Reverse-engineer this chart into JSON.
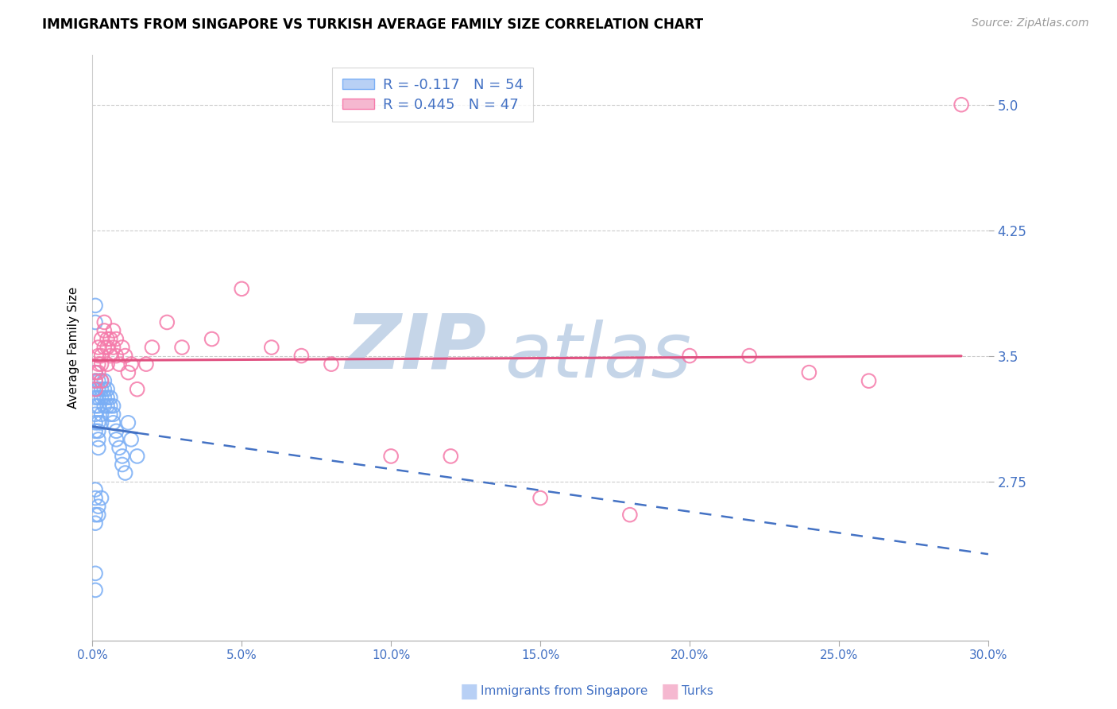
{
  "title": "IMMIGRANTS FROM SINGAPORE VS TURKISH AVERAGE FAMILY SIZE CORRELATION CHART",
  "source": "Source: ZipAtlas.com",
  "ylabel": "Average Family Size",
  "x_min": 0.0,
  "x_max": 0.3,
  "y_min": 1.8,
  "y_max": 5.3,
  "yticks": [
    2.75,
    3.5,
    4.25,
    5.0
  ],
  "xticks": [
    0.0,
    0.05,
    0.1,
    0.15,
    0.2,
    0.25,
    0.3
  ],
  "xtick_labels": [
    "0.0%",
    "5.0%",
    "10.0%",
    "15.0%",
    "20.0%",
    "25.0%",
    "30.0%"
  ],
  "singapore_color": "#7aaef5",
  "turks_color": "#f57aaa",
  "singapore_line_color": "#4472C4",
  "turks_line_color": "#e05080",
  "singapore_R": -0.117,
  "singapore_N": 54,
  "turks_R": 0.445,
  "turks_N": 47,
  "watermark_color": "#c5d5e8",
  "legend_sing_face": "#b8d0f5",
  "legend_sing_edge": "#7aaef5",
  "legend_turks_face": "#f5b8d0",
  "legend_turks_edge": "#f57aaa",
  "tick_color": "#4472C4",
  "title_fontsize": 12,
  "source_fontsize": 10,
  "singapore_x": [
    0.001,
    0.001,
    0.001,
    0.001,
    0.001,
    0.001,
    0.001,
    0.001,
    0.001,
    0.001,
    0.002,
    0.002,
    0.002,
    0.002,
    0.002,
    0.002,
    0.002,
    0.002,
    0.003,
    0.003,
    0.003,
    0.003,
    0.003,
    0.004,
    0.004,
    0.004,
    0.004,
    0.005,
    0.005,
    0.005,
    0.006,
    0.006,
    0.006,
    0.007,
    0.007,
    0.007,
    0.008,
    0.008,
    0.009,
    0.01,
    0.01,
    0.011,
    0.012,
    0.013,
    0.015,
    0.001,
    0.001,
    0.002,
    0.002,
    0.003,
    0.001,
    0.001,
    0.001,
    0.001
  ],
  "singapore_y": [
    3.25,
    3.3,
    3.35,
    3.4,
    3.2,
    3.15,
    3.1,
    3.05,
    2.65,
    2.7,
    3.3,
    3.35,
    3.25,
    3.2,
    3.1,
    3.05,
    3.0,
    2.95,
    3.35,
    3.3,
    3.25,
    3.15,
    3.1,
    3.35,
    3.3,
    3.25,
    3.2,
    3.3,
    3.25,
    3.2,
    3.25,
    3.2,
    3.15,
    3.2,
    3.15,
    3.1,
    3.05,
    3.0,
    2.95,
    2.9,
    2.85,
    2.8,
    3.1,
    3.0,
    2.9,
    2.55,
    2.5,
    2.6,
    2.55,
    2.65,
    3.8,
    3.7,
    2.2,
    2.1
  ],
  "turks_x": [
    0.001,
    0.001,
    0.001,
    0.002,
    0.002,
    0.002,
    0.002,
    0.003,
    0.003,
    0.003,
    0.003,
    0.004,
    0.004,
    0.004,
    0.005,
    0.005,
    0.005,
    0.006,
    0.006,
    0.007,
    0.007,
    0.008,
    0.008,
    0.009,
    0.01,
    0.011,
    0.012,
    0.013,
    0.015,
    0.018,
    0.02,
    0.025,
    0.03,
    0.04,
    0.05,
    0.06,
    0.07,
    0.08,
    0.1,
    0.12,
    0.15,
    0.18,
    0.2,
    0.22,
    0.24,
    0.26,
    0.291
  ],
  "turks_y": [
    3.3,
    3.35,
    3.4,
    3.4,
    3.45,
    3.5,
    3.55,
    3.35,
    3.45,
    3.5,
    3.6,
    3.55,
    3.65,
    3.7,
    3.45,
    3.55,
    3.6,
    3.5,
    3.6,
    3.55,
    3.65,
    3.5,
    3.6,
    3.45,
    3.55,
    3.5,
    3.4,
    3.45,
    3.3,
    3.45,
    3.55,
    3.7,
    3.55,
    3.6,
    3.9,
    3.55,
    3.5,
    3.45,
    2.9,
    2.9,
    2.65,
    2.55,
    3.5,
    3.5,
    3.4,
    3.35,
    5.0
  ]
}
